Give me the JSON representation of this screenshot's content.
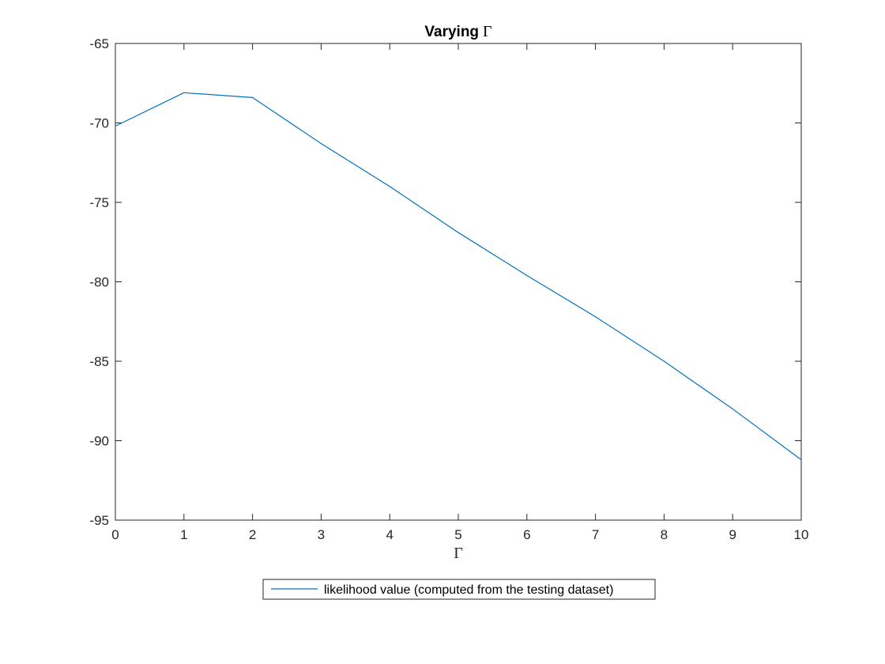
{
  "chart_data": {
    "type": "line",
    "title": "Varying",
    "title_symbol": "Γ",
    "xlabel": "Γ",
    "ylabel": "",
    "xlim": [
      0,
      10
    ],
    "ylim": [
      -95,
      -65
    ],
    "xticks": [
      0,
      1,
      2,
      3,
      4,
      5,
      6,
      7,
      8,
      9,
      10
    ],
    "yticks": [
      -65,
      -70,
      -75,
      -80,
      -85,
      -90,
      -95
    ],
    "grid": false,
    "legend_position": "bottom-outside",
    "series": [
      {
        "name": "likelihood value (computed from the testing dataset)",
        "color": "#0072BD",
        "x": [
          0,
          1,
          2,
          3,
          4,
          5,
          6,
          7,
          8,
          9,
          10
        ],
        "y": [
          -70.2,
          -68.1,
          -68.4,
          -71.3,
          -74.0,
          -76.9,
          -79.6,
          -82.2,
          -85.0,
          -88.0,
          -91.2
        ]
      }
    ]
  }
}
